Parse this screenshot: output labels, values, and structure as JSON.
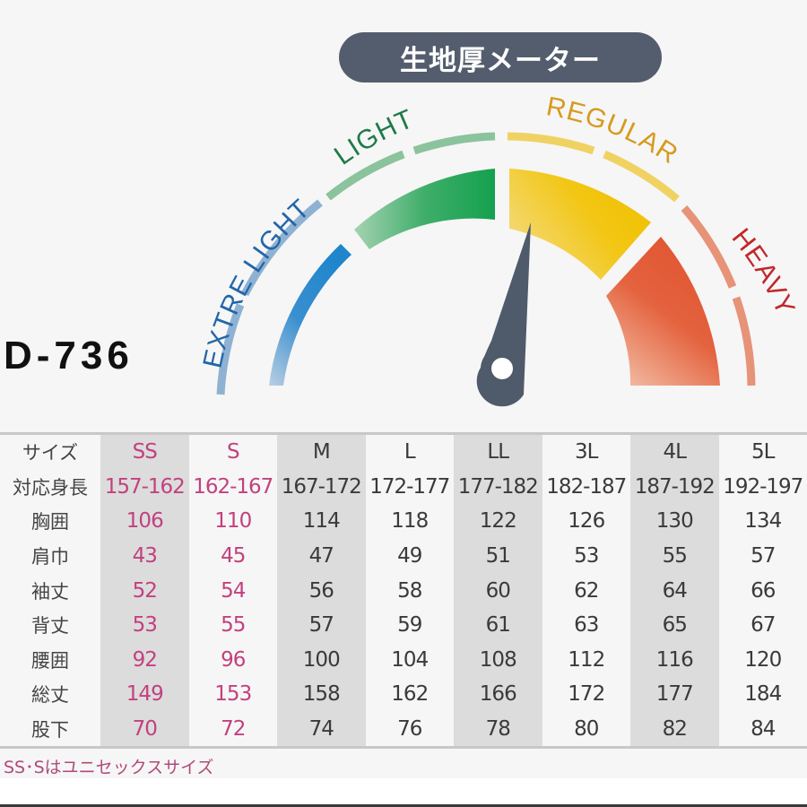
{
  "header": {
    "title": "生地厚メーター"
  },
  "product": {
    "model": "D-736"
  },
  "gauge": {
    "labels": {
      "extra_light": "EXTRE LIGHT",
      "light": "LIGHT",
      "regular": "REGULAR",
      "heavy": "HEAVY"
    },
    "colors": {
      "extra_light": "#2f8fd0",
      "light": "#1fa454",
      "regular": "#f0c21a",
      "heavy": "#e0573a",
      "needle": "#4f5a6a",
      "pill": "#535d6d"
    },
    "needle_level": "REGULAR (low end)"
  },
  "size_table": {
    "row_labels": [
      "サイズ",
      "対応身長",
      "胸囲",
      "肩巾",
      "袖丈",
      "背丈",
      "腰囲",
      "総丈",
      "股下"
    ],
    "rows": [
      {
        "label": "サイズ",
        "values": [
          "SS",
          "S",
          "M",
          "L",
          "LL",
          "3L",
          "4L",
          "5L"
        ]
      },
      {
        "label": "対応身長",
        "values": [
          "157-162",
          "162-167",
          "167-172",
          "172-177",
          "177-182",
          "182-187",
          "187-192",
          "192-197"
        ]
      },
      {
        "label": "胸囲",
        "values": [
          "106",
          "110",
          "114",
          "118",
          "122",
          "126",
          "130",
          "134"
        ]
      },
      {
        "label": "肩巾",
        "values": [
          "43",
          "45",
          "47",
          "49",
          "51",
          "53",
          "55",
          "57"
        ]
      },
      {
        "label": "袖丈",
        "values": [
          "52",
          "54",
          "56",
          "58",
          "60",
          "62",
          "64",
          "66"
        ]
      },
      {
        "label": "背丈",
        "values": [
          "53",
          "55",
          "57",
          "59",
          "61",
          "63",
          "65",
          "67"
        ]
      },
      {
        "label": "腰囲",
        "values": [
          "92",
          "96",
          "100",
          "104",
          "108",
          "112",
          "116",
          "120"
        ]
      },
      {
        "label": "総丈",
        "values": [
          "149",
          "153",
          "158",
          "162",
          "166",
          "172",
          "177",
          "184"
        ]
      },
      {
        "label": "股下",
        "values": [
          "70",
          "72",
          "74",
          "76",
          "78",
          "80",
          "82",
          "84"
        ]
      }
    ],
    "pink_color": "#c2417f",
    "shade_color": "#dcdcdc"
  },
  "note": "SS･Sはユニセックスサイズ"
}
